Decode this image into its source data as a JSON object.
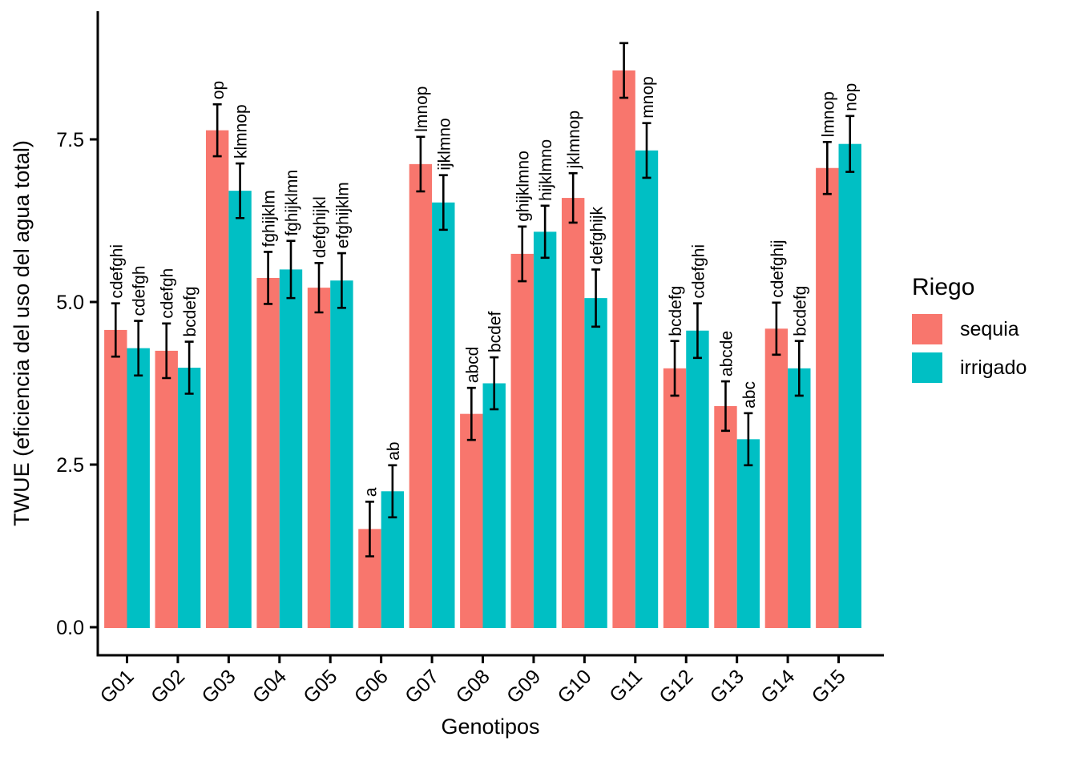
{
  "chart_data": {
    "type": "bar",
    "title": "",
    "xlabel": "Genotipos",
    "ylabel": "TWUE (eficiencia del uso del agua total)",
    "categories": [
      "G01",
      "G02",
      "G03",
      "G04",
      "G05",
      "G06",
      "G07",
      "G08",
      "G09",
      "G10",
      "G11",
      "G12",
      "G13",
      "G14",
      "G15"
    ],
    "ylim": [
      0,
      9.4
    ],
    "yticks": [
      0,
      2.5,
      5,
      7.5
    ],
    "ytick_labels": [
      "0.0",
      "2.5",
      "5.0",
      "7.5"
    ],
    "grid": false,
    "legend": {
      "title": "Riego",
      "position": "right",
      "items": [
        {
          "label": "sequia",
          "color": "#F8766D"
        },
        {
          "label": "irrigado",
          "color": "#00BFC4"
        }
      ]
    },
    "series": [
      {
        "name": "sequia",
        "color": "#F8766D",
        "values": [
          4.57,
          4.25,
          7.64,
          5.37,
          5.22,
          1.51,
          7.12,
          3.28,
          5.74,
          6.6,
          8.56,
          3.98,
          3.4,
          4.59,
          7.06
        ],
        "errors": [
          0.41,
          0.42,
          0.4,
          0.4,
          0.38,
          0.42,
          0.42,
          0.4,
          0.42,
          0.38,
          0.42,
          0.42,
          0.38,
          0.4,
          0.4
        ],
        "letters": [
          "cdefghi",
          "cdefgh",
          "op",
          "fghijklm",
          "defghijkl",
          "a",
          "lmnop",
          "abcd",
          "ghijklmno",
          "jklmnop",
          "",
          "bcdefg",
          "abcde",
          "cdefghij",
          "lmnop"
        ]
      },
      {
        "name": "irrigado",
        "color": "#00BFC4",
        "values": [
          4.29,
          3.99,
          6.71,
          5.5,
          5.33,
          2.09,
          6.53,
          3.75,
          6.08,
          5.06,
          7.33,
          4.56,
          2.89,
          3.98,
          7.43
        ],
        "errors": [
          0.42,
          0.4,
          0.42,
          0.44,
          0.42,
          0.4,
          0.42,
          0.4,
          0.4,
          0.44,
          0.42,
          0.42,
          0.4,
          0.42,
          0.43
        ],
        "letters": [
          "cdefgh",
          "bcdefg",
          "klmnop",
          "fghijklmn",
          "efghijklm",
          "ab",
          "ijklmno",
          "bcdef",
          "hijklmno",
          "defghijk",
          "mnop",
          "cdefghi",
          "abc",
          "bcdefg",
          "nop"
        ]
      }
    ]
  }
}
